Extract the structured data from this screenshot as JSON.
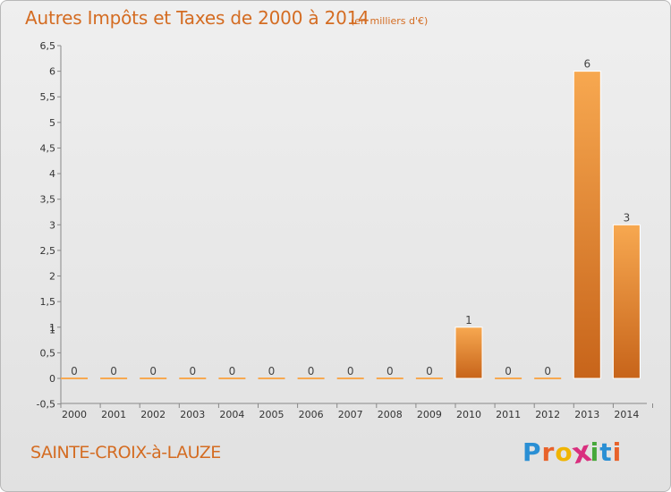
{
  "header": {
    "title": "Autres Impôts et Taxes de 2000 à 2014",
    "unit": "(en milliers d'€)"
  },
  "footer": {
    "commune": "SAINTE-CROIX-à-LAUZE",
    "brand_letters": [
      "P",
      "r",
      "o",
      "x",
      "i",
      "t",
      "i"
    ],
    "brand_colors": [
      "#2a8fd4",
      "#e8622a",
      "#f0b400",
      "#d92f7e",
      "#46a83a",
      "#2a8fd4",
      "#e8622a"
    ]
  },
  "chart_data": {
    "type": "bar",
    "title": "Autres Impôts et Taxes de 2000 à 2014",
    "subtitle": "(en milliers d'€)",
    "xlabel": "",
    "ylabel": "",
    "categories": [
      "2000",
      "2001",
      "2002",
      "2003",
      "2004",
      "2005",
      "2006",
      "2007",
      "2008",
      "2009",
      "2010",
      "2011",
      "2012",
      "2013",
      "2014"
    ],
    "values": [
      0,
      0,
      0,
      0,
      0,
      0,
      0,
      0,
      0,
      0,
      1,
      0,
      0,
      6,
      3
    ],
    "ylim": [
      -0.5,
      6.5
    ],
    "yticks": [
      "-0,5",
      "0",
      "0,5",
      "1",
      "1,5",
      "2",
      "2,5",
      "3",
      "3,5",
      "4",
      "4,5",
      "5",
      "5,5",
      "6",
      "6,5"
    ],
    "extra_tick_label": "1",
    "grid": false,
    "legend": "none",
    "colors": {
      "bar_top": "#f7a850",
      "bar_bottom": "#c7641a",
      "axis": "#888888",
      "accent": "#d46c22"
    }
  }
}
